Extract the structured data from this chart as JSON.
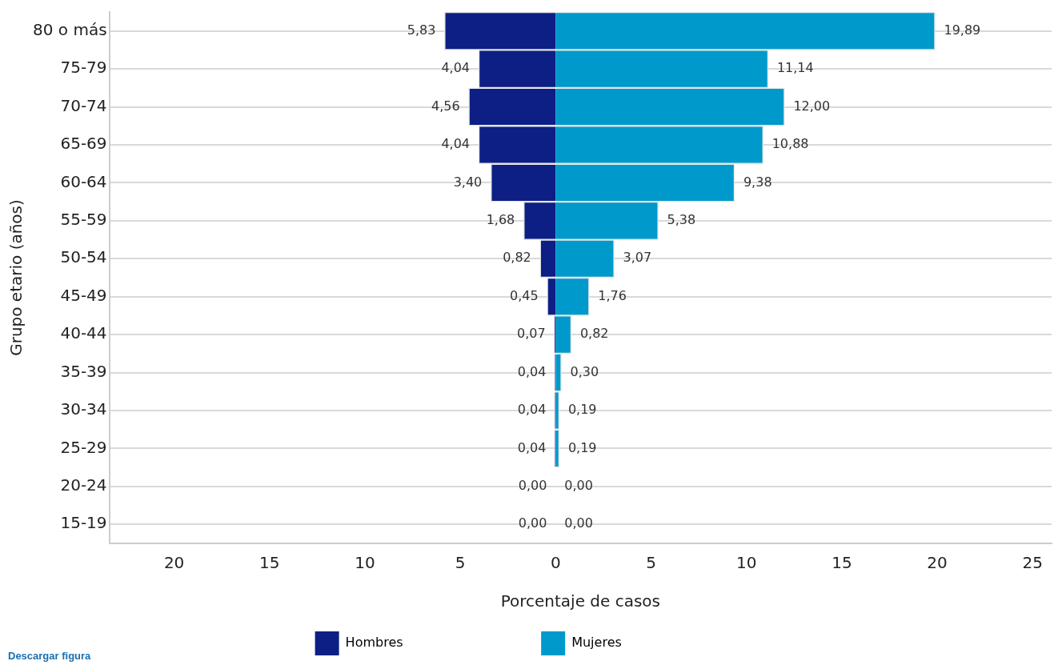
{
  "chart_data": {
    "type": "bar",
    "orientation": "horizontal",
    "xlabel": "Porcentaje de casos",
    "ylabel": "Grupo etario (años)",
    "categories": [
      "80 o más",
      "75-79",
      "70-74",
      "65-69",
      "60-64",
      "55-59",
      "50-54",
      "45-49",
      "40-44",
      "35-39",
      "30-34",
      "25-29",
      "20-24",
      "15-19"
    ],
    "series": [
      {
        "name": "Hombres",
        "color": "#0d1f85",
        "values": [
          5.83,
          4.04,
          4.56,
          4.04,
          3.4,
          1.68,
          0.82,
          0.45,
          0.07,
          0.04,
          0.04,
          0.04,
          0,
          0
        ],
        "base": [
          -5.83,
          -4.04,
          -4.56,
          -4.04,
          -3.4,
          -1.68,
          -0.82,
          -0.45,
          -0.07,
          -0.04,
          -0.04,
          -0.04,
          0,
          0
        ],
        "value_labels": [
          "5,83",
          "4,04",
          "4,56",
          "4,04",
          "3,40",
          "1,68",
          "0,82",
          "0,45",
          "0,07",
          "0,04",
          "0,04",
          "0,04",
          "0,00",
          "0,00"
        ]
      },
      {
        "name": "Mujeres",
        "color": "#0099cc",
        "values": [
          19.89,
          11.14,
          12.0,
          10.88,
          9.38,
          5.38,
          3.07,
          1.76,
          0.82,
          0.3,
          0.19,
          0.19,
          0,
          0
        ],
        "value_labels": [
          "19,89",
          "11,14",
          "12,00",
          "10,88",
          "9,38",
          "5,38",
          "3,07",
          "1,76",
          "0,82",
          "0,30",
          "0,19",
          "0,19",
          "0,00",
          "0,00"
        ]
      }
    ],
    "xlim": [
      -23.4,
      26
    ],
    "xticks": [
      {
        "value": -20,
        "label": "20"
      },
      {
        "value": -15,
        "label": "15"
      },
      {
        "value": -10,
        "label": "10"
      },
      {
        "value": -5,
        "label": "5"
      },
      0,
      5,
      10,
      15,
      20,
      25
    ],
    "grid": "y",
    "legend": "bottom",
    "annotations": [
      "Descargar figura"
    ]
  }
}
